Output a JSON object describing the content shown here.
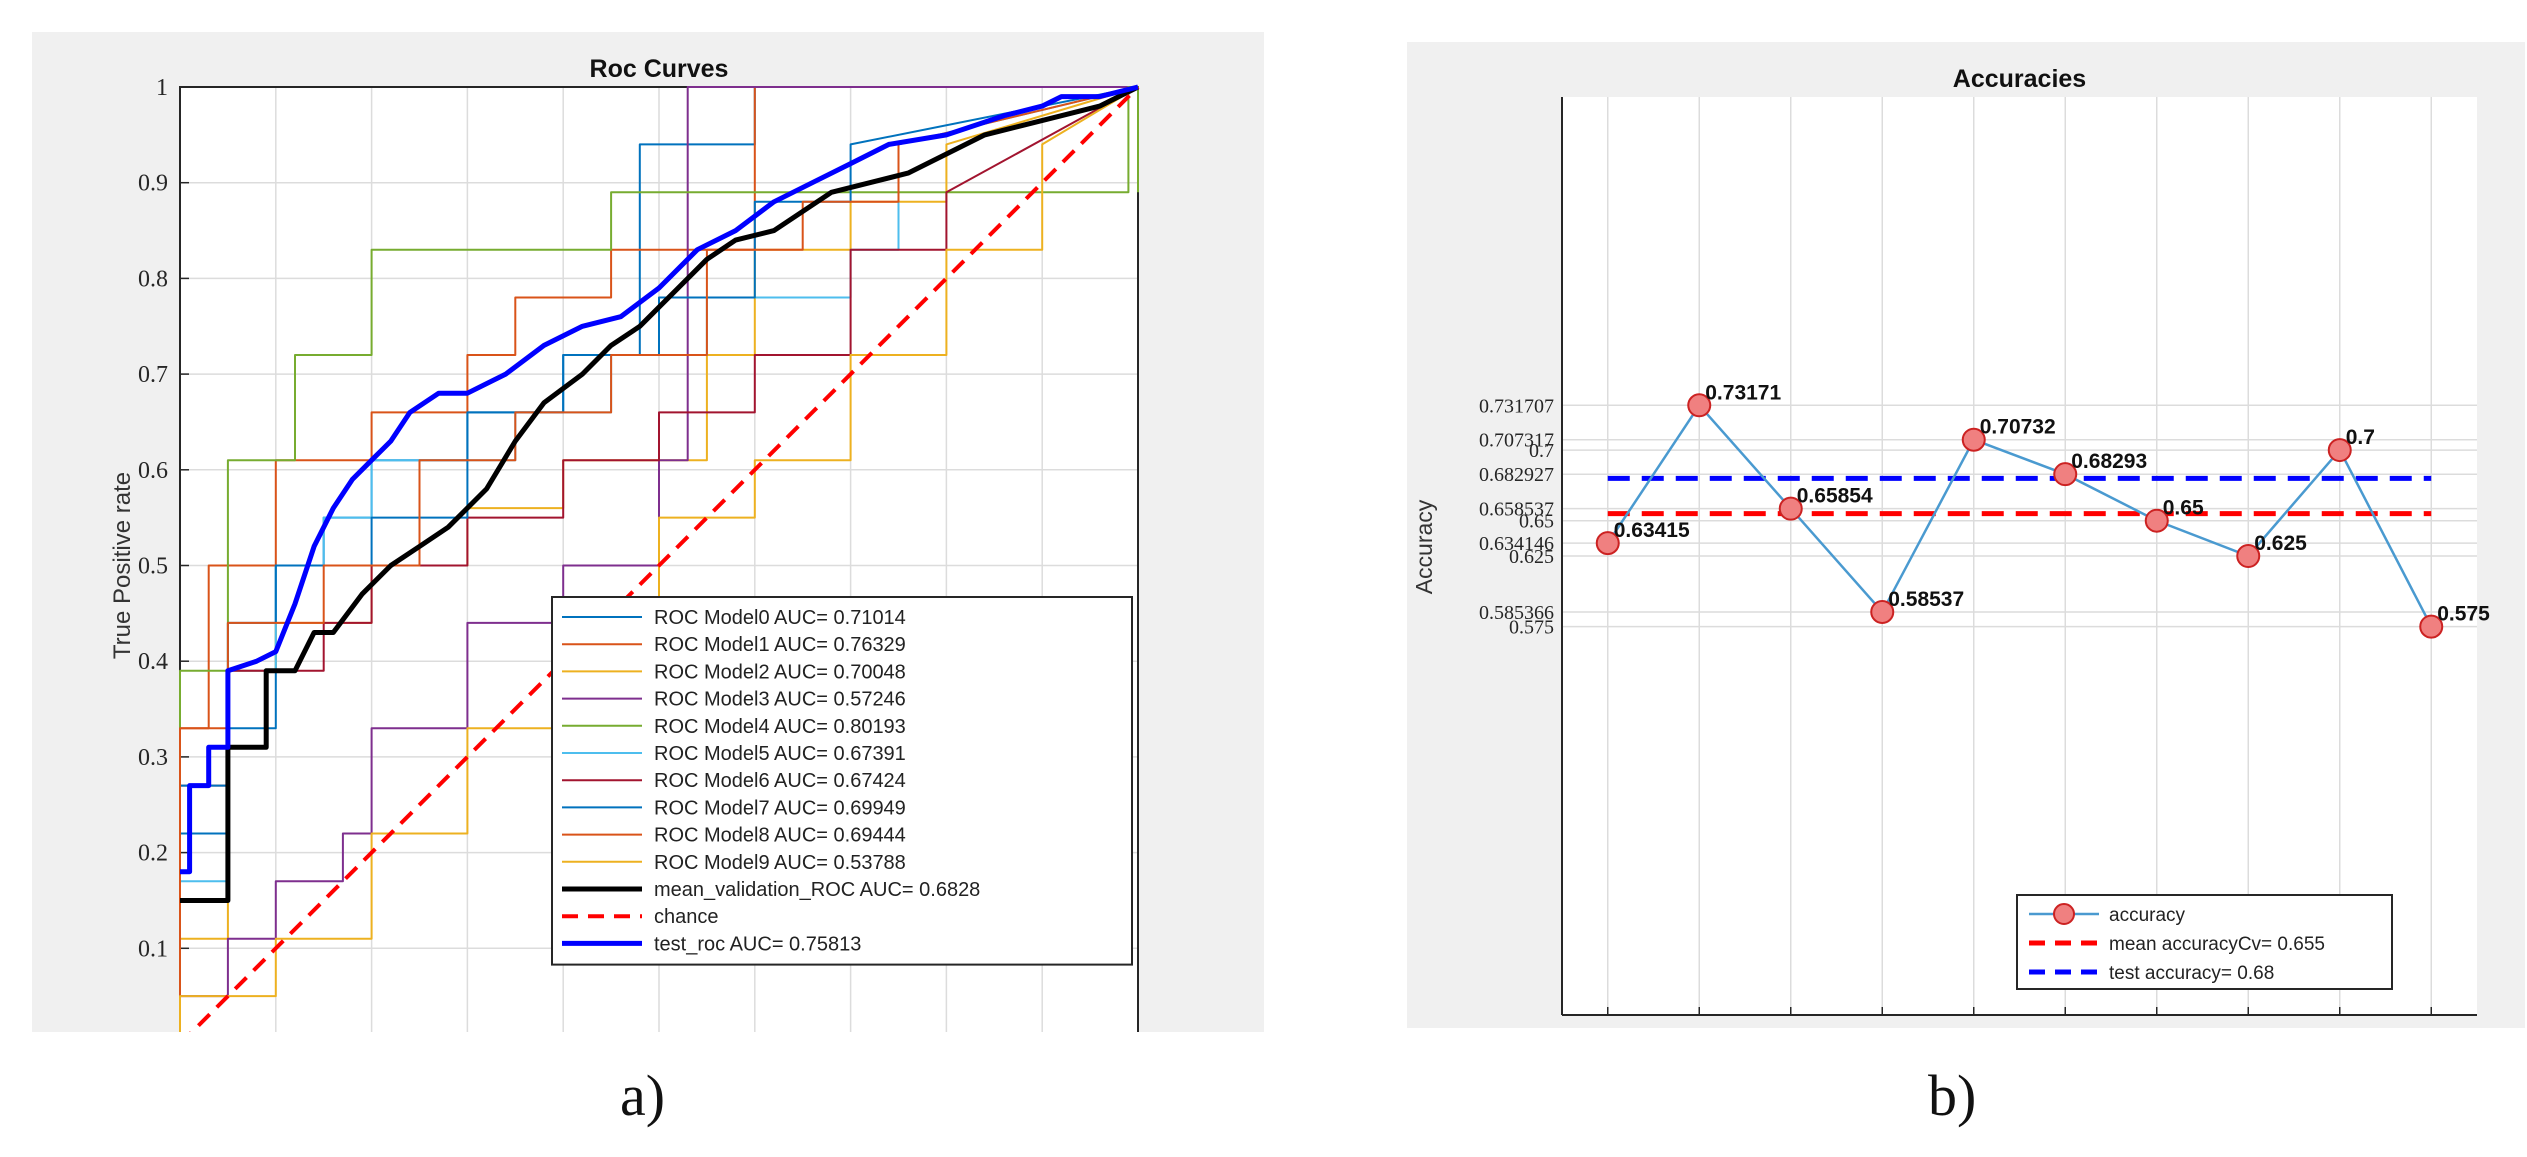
{
  "chart_data": [
    {
      "type": "line",
      "title": "Roc Curves",
      "xlabel": "",
      "ylabel": "True Positive rate",
      "xlim": [
        0,
        1
      ],
      "ylim": [
        0,
        1
      ],
      "yticks": [
        "0",
        "0.1",
        "0.2",
        "0.3",
        "0.4",
        "0.5",
        "0.6",
        "0.7",
        "0.8",
        "0.9",
        "1"
      ],
      "grid": true,
      "legend_position": "bottom-right",
      "series": [
        {
          "name": "ROC Model0 AUC= 0.71014",
          "color": "#0072bd",
          "width": 2,
          "x": [
            0,
            0,
            0.05,
            0.05,
            0.1,
            0.1,
            0.15,
            0.15,
            0.2,
            0.2,
            0.3,
            0.3,
            0.4,
            0.4,
            0.48,
            0.48,
            0.6,
            0.6,
            0.7,
            0.7,
            1
          ],
          "y": [
            0,
            0.22,
            0.22,
            0.33,
            0.33,
            0.5,
            0.5,
            0.55,
            0.55,
            0.61,
            0.61,
            0.66,
            0.66,
            0.72,
            0.72,
            0.94,
            0.94,
            1,
            1,
            1,
            1
          ]
        },
        {
          "name": "ROC Model1 AUC= 0.76329",
          "color": "#d95319",
          "width": 2,
          "x": [
            0,
            0,
            0.03,
            0.03,
            0.1,
            0.1,
            0.2,
            0.2,
            0.3,
            0.3,
            0.35,
            0.35,
            0.45,
            0.45,
            0.6,
            0.6,
            0.75,
            0.75,
            1
          ],
          "y": [
            0,
            0.33,
            0.33,
            0.5,
            0.5,
            0.61,
            0.61,
            0.66,
            0.66,
            0.72,
            0.72,
            0.78,
            0.78,
            0.83,
            0.83,
            1,
            1,
            1,
            1
          ]
        },
        {
          "name": "ROC Model2 AUC= 0.70048",
          "color": "#edb120",
          "width": 2,
          "x": [
            0,
            0,
            0.05,
            0.05,
            0.1,
            0.1,
            0.2,
            0.2,
            0.3,
            0.3,
            0.4,
            0.4,
            0.55,
            0.55,
            0.6,
            0.6,
            0.7,
            0.7,
            0.8,
            0.8,
            1
          ],
          "y": [
            0,
            0.11,
            0.11,
            0.39,
            0.39,
            0.44,
            0.44,
            0.5,
            0.5,
            0.56,
            0.56,
            0.61,
            0.61,
            0.72,
            0.72,
            0.83,
            0.83,
            0.88,
            0.88,
            0.94,
            1
          ]
        },
        {
          "name": "ROC Model3 AUC= 0.57246",
          "color": "#7e2f8e",
          "width": 2,
          "x": [
            0,
            0,
            0.05,
            0.05,
            0.1,
            0.1,
            0.17,
            0.17,
            0.2,
            0.2,
            0.3,
            0.3,
            0.4,
            0.4,
            0.5,
            0.5,
            0.53,
            0.53,
            0.7,
            0.7,
            1
          ],
          "y": [
            0,
            0.05,
            0.05,
            0.11,
            0.11,
            0.17,
            0.17,
            0.22,
            0.22,
            0.33,
            0.33,
            0.44,
            0.44,
            0.5,
            0.5,
            0.61,
            0.61,
            1,
            1,
            1,
            1
          ]
        },
        {
          "name": "ROC Model4 AUC= 0.80193",
          "color": "#77ac30",
          "width": 2,
          "x": [
            0,
            0,
            0.05,
            0.05,
            0.12,
            0.12,
            0.2,
            0.2,
            0.3,
            0.3,
            0.45,
            0.45,
            0.6,
            0.6,
            0.7,
            0.7,
            0.99,
            0.99,
            1,
            1
          ],
          "y": [
            0,
            0.39,
            0.39,
            0.61,
            0.61,
            0.72,
            0.72,
            0.83,
            0.83,
            0.83,
            0.83,
            0.89,
            0.89,
            0.89,
            0.89,
            0.89,
            0.89,
            1,
            1,
            0.89
          ]
        },
        {
          "name": "ROC Model5 AUC= 0.67391",
          "color": "#4dbeee",
          "width": 2,
          "x": [
            0,
            0,
            0.05,
            0.05,
            0.1,
            0.1,
            0.15,
            0.15,
            0.2,
            0.2,
            0.35,
            0.35,
            0.45,
            0.45,
            0.55,
            0.55,
            0.7,
            0.7,
            0.75,
            0.75,
            1
          ],
          "y": [
            0,
            0.17,
            0.17,
            0.39,
            0.39,
            0.5,
            0.5,
            0.55,
            0.55,
            0.61,
            0.61,
            0.66,
            0.66,
            0.72,
            0.72,
            0.78,
            0.78,
            0.83,
            0.83,
            0.94,
            1
          ]
        },
        {
          "name": "ROC Model6 AUC= 0.67424",
          "color": "#a2142f",
          "width": 2,
          "x": [
            0,
            0,
            0.05,
            0.05,
            0.15,
            0.15,
            0.2,
            0.2,
            0.3,
            0.3,
            0.4,
            0.4,
            0.5,
            0.5,
            0.6,
            0.6,
            0.7,
            0.7,
            0.8,
            0.8,
            1
          ],
          "y": [
            0,
            0.27,
            0.27,
            0.39,
            0.39,
            0.44,
            0.44,
            0.5,
            0.5,
            0.55,
            0.55,
            0.61,
            0.61,
            0.66,
            0.66,
            0.72,
            0.72,
            0.83,
            0.83,
            0.89,
            1
          ]
        },
        {
          "name": "ROC Model7 AUC= 0.69949",
          "color": "#0072bd",
          "width": 2,
          "x": [
            0,
            0,
            0.05,
            0.05,
            0.1,
            0.1,
            0.2,
            0.2,
            0.3,
            0.3,
            0.4,
            0.4,
            0.5,
            0.5,
            0.6,
            0.6,
            0.7,
            0.7,
            1
          ],
          "y": [
            0,
            0.27,
            0.27,
            0.44,
            0.44,
            0.5,
            0.5,
            0.55,
            0.55,
            0.66,
            0.66,
            0.72,
            0.72,
            0.78,
            0.78,
            0.88,
            0.88,
            0.94,
            1
          ]
        },
        {
          "name": "ROC Model8 AUC= 0.69444",
          "color": "#d95319",
          "width": 2,
          "x": [
            0,
            0,
            0.05,
            0.05,
            0.15,
            0.15,
            0.25,
            0.25,
            0.35,
            0.35,
            0.45,
            0.45,
            0.55,
            0.55,
            0.65,
            0.65,
            0.75,
            0.75,
            1
          ],
          "y": [
            0,
            0.33,
            0.33,
            0.44,
            0.44,
            0.5,
            0.5,
            0.61,
            0.61,
            0.66,
            0.66,
            0.72,
            0.72,
            0.83,
            0.83,
            0.88,
            0.88,
            0.94,
            1
          ]
        },
        {
          "name": "ROC Model9 AUC= 0.53788",
          "color": "#edb120",
          "width": 2,
          "x": [
            0,
            0,
            0.1,
            0.1,
            0.2,
            0.2,
            0.3,
            0.3,
            0.4,
            0.4,
            0.5,
            0.5,
            0.6,
            0.6,
            0.7,
            0.7,
            0.8,
            0.8,
            0.9,
            0.9,
            1
          ],
          "y": [
            0,
            0.05,
            0.05,
            0.11,
            0.11,
            0.22,
            0.22,
            0.33,
            0.33,
            0.44,
            0.44,
            0.55,
            0.55,
            0.61,
            0.61,
            0.72,
            0.72,
            0.83,
            0.83,
            0.94,
            1
          ]
        },
        {
          "name": "mean_validation_ROC  AUC=  0.6828",
          "color": "#000000",
          "width": 5,
          "x": [
            0,
            0.05,
            0.05,
            0.09,
            0.09,
            0.12,
            0.14,
            0.16,
            0.19,
            0.22,
            0.25,
            0.28,
            0.32,
            0.35,
            0.38,
            0.42,
            0.45,
            0.48,
            0.52,
            0.55,
            0.58,
            0.62,
            0.65,
            0.68,
            0.72,
            0.76,
            0.8,
            0.84,
            0.88,
            0.92,
            0.96,
            1
          ],
          "y": [
            0.15,
            0.15,
            0.31,
            0.31,
            0.39,
            0.39,
            0.43,
            0.43,
            0.47,
            0.5,
            0.52,
            0.54,
            0.58,
            0.63,
            0.67,
            0.7,
            0.73,
            0.75,
            0.79,
            0.82,
            0.84,
            0.85,
            0.87,
            0.89,
            0.9,
            0.91,
            0.93,
            0.95,
            0.96,
            0.97,
            0.98,
            1
          ]
        },
        {
          "name": "chance",
          "color": "#ff0000",
          "width": 4,
          "dashed": true,
          "x": [
            0,
            1
          ],
          "y": [
            0,
            1
          ]
        },
        {
          "name": "test_roc  AUC=  0.75813",
          "color": "#0000ff",
          "width": 5,
          "x": [
            0,
            0.01,
            0.01,
            0.03,
            0.03,
            0.05,
            0.05,
            0.08,
            0.1,
            0.12,
            0.14,
            0.16,
            0.18,
            0.2,
            0.22,
            0.24,
            0.27,
            0.3,
            0.34,
            0.38,
            0.42,
            0.46,
            0.5,
            0.54,
            0.58,
            0.62,
            0.66,
            0.7,
            0.74,
            0.8,
            0.86,
            0.9,
            0.92,
            0.96,
            1
          ],
          "y": [
            0.18,
            0.18,
            0.27,
            0.27,
            0.31,
            0.31,
            0.39,
            0.4,
            0.41,
            0.46,
            0.52,
            0.56,
            0.59,
            0.61,
            0.63,
            0.66,
            0.68,
            0.68,
            0.7,
            0.73,
            0.75,
            0.76,
            0.79,
            0.83,
            0.85,
            0.88,
            0.9,
            0.92,
            0.94,
            0.95,
            0.97,
            0.98,
            0.99,
            0.99,
            1
          ]
        }
      ]
    },
    {
      "type": "line",
      "title": "Accuracies",
      "xlabel": "",
      "ylabel": "Accuracy",
      "x": [
        1,
        2,
        3,
        4,
        5,
        6,
        7,
        8,
        9,
        10
      ],
      "xlim": [
        0.5,
        10.5
      ],
      "ylim": [
        0.3,
        0.95
      ],
      "yticks": [
        "0.575",
        "0.585366",
        "0.625",
        "0.634146",
        "0.65",
        "0.658537",
        "0.682927",
        "0.7",
        "0.707317",
        "0.731707"
      ],
      "grid": true,
      "legend_position": "bottom-right",
      "series": [
        {
          "name": "accuracy",
          "color": "#4a9ad0",
          "marker_color": "#f08080",
          "values": [
            0.63415,
            0.73171,
            0.65854,
            0.58537,
            0.70732,
            0.68293,
            0.65,
            0.625,
            0.7,
            0.575
          ],
          "labels": [
            "0.63415",
            "0.73171",
            "0.65854",
            "0.58537",
            "0.70732",
            "0.68293",
            "0.65",
            "0.625",
            "0.7",
            "0.575"
          ]
        },
        {
          "name": "mean accuracyCv= 0.655",
          "color": "#ff0000",
          "dashed": true,
          "value": 0.655
        },
        {
          "name": "test accuracy= 0.68",
          "color": "#0000ff",
          "dashed": true,
          "value": 0.68
        }
      ]
    }
  ],
  "figure_labels": {
    "a": "a)",
    "b": "b)"
  }
}
